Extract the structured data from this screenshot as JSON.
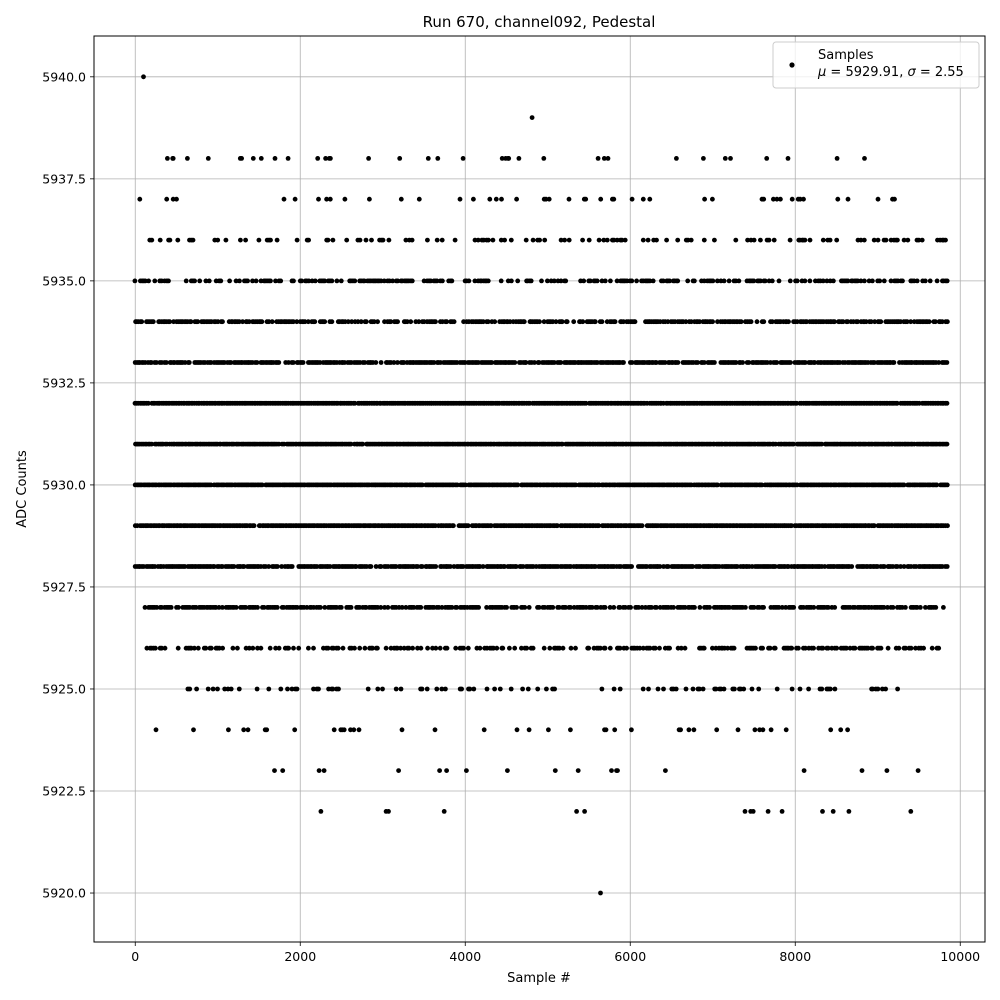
{
  "chart_data": {
    "type": "scatter",
    "title": "Run 670, channel092, Pedestal",
    "xlabel": "Sample #",
    "ylabel": "ADC Counts",
    "xlim": [
      -500,
      10300
    ],
    "ylim": [
      5918.8,
      5941.0
    ],
    "xticks": [
      0,
      2000,
      4000,
      6000,
      8000,
      10000
    ],
    "xtick_labels": [
      "0",
      "2000",
      "4000",
      "6000",
      "8000",
      "10000"
    ],
    "yticks": [
      5920.0,
      5922.5,
      5925.0,
      5927.5,
      5930.0,
      5932.5,
      5935.0,
      5937.5,
      5940.0
    ],
    "ytick_labels": [
      "5920.0",
      "5922.5",
      "5925.0",
      "5927.5",
      "5930.0",
      "5932.5",
      "5935.0",
      "5937.5",
      "5940.0"
    ],
    "grid": true,
    "legend": {
      "position": "top-right",
      "entries": [
        {
          "label": "Samples",
          "sublabel": "μ = 5929.91, σ = 2.55"
        }
      ]
    },
    "colors": {
      "points": "#000000",
      "grid": "#b0b0b0"
    },
    "series": [
      {
        "name": "Samples",
        "x_range": [
          0,
          9840
        ],
        "levels": [
          {
            "y": 5928,
            "x": [
              0,
              9840
            ]
          },
          {
            "y": 5929,
            "x": [
              0,
              9840
            ]
          },
          {
            "y": 5930,
            "x": [
              0,
              9840
            ]
          },
          {
            "y": 5931,
            "x": [
              0,
              9840
            ]
          },
          {
            "y": 5932,
            "x": [
              0,
              9840
            ]
          },
          {
            "y": 5933,
            "x": [
              0,
              9840
            ]
          },
          {
            "y": 5934,
            "x": [
              0,
              9840
            ]
          },
          {
            "y": 5935,
            "x": [
              0,
              9840
            ]
          },
          {
            "y": 5927,
            "x": [
              60,
              9800
            ]
          },
          {
            "y": 5926,
            "x": [
              140,
              9780
            ]
          },
          {
            "y": 5936,
            "x": [
              0,
              9840
            ]
          },
          {
            "y": 5925,
            "x": [
              620,
              9500
            ]
          },
          {
            "y": 5937,
            "x": [
              0,
              9480
            ]
          },
          {
            "y": 5924,
            "x": [
              250,
              8700
            ]
          },
          {
            "y": 5923,
            "x": [
              1550,
              9720
            ]
          },
          {
            "y": 5938,
            "x": [
              390,
              8840
            ]
          },
          {
            "y": 5922,
            "x": [
              2250,
              9400
            ]
          }
        ],
        "outliers": [
          {
            "x": 100,
            "y": 5940
          },
          {
            "x": 4810,
            "y": 5939
          },
          {
            "x": 5640,
            "y": 5920
          },
          {
            "x": 390,
            "y": 5938
          },
          {
            "x": 460,
            "y": 5938
          },
          {
            "x": 4490,
            "y": 5938
          },
          {
            "x": 4520,
            "y": 5938
          },
          {
            "x": 4650,
            "y": 5938
          },
          {
            "x": 6560,
            "y": 5938
          },
          {
            "x": 8840,
            "y": 5938
          },
          {
            "x": 2250,
            "y": 5922
          },
          {
            "x": 3040,
            "y": 5922
          },
          {
            "x": 3070,
            "y": 5922
          },
          {
            "x": 5350,
            "y": 5922
          },
          {
            "x": 7460,
            "y": 5922
          },
          {
            "x": 7490,
            "y": 5922
          },
          {
            "x": 7840,
            "y": 5922
          },
          {
            "x": 8330,
            "y": 5922
          },
          {
            "x": 8460,
            "y": 5922
          },
          {
            "x": 8650,
            "y": 5922
          },
          {
            "x": 9400,
            "y": 5922
          }
        ]
      }
    ]
  }
}
